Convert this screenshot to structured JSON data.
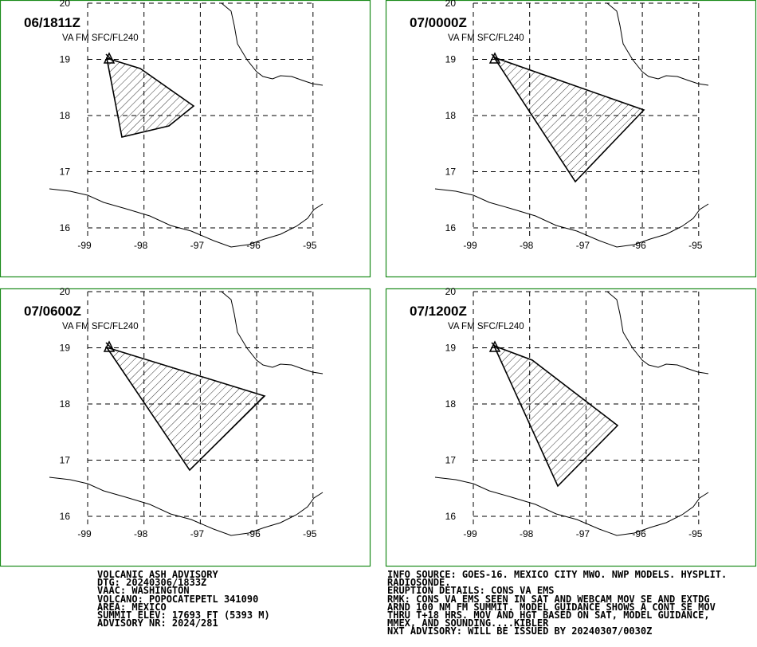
{
  "panels": [
    {
      "time": "06/1811Z",
      "level": "VA FM SFC/FL240"
    },
    {
      "time": "07/0000Z",
      "level": "VA FM SFC/FL240"
    },
    {
      "time": "07/0600Z",
      "level": "VA FM SFC/FL240"
    },
    {
      "time": "07/1200Z",
      "level": "VA FM SFC/FL240"
    }
  ],
  "lat_ticks": [
    20,
    19,
    18,
    17,
    16
  ],
  "lon_ticks": [
    -99,
    -98,
    -97,
    -96,
    -95
  ],
  "advisory_left": [
    "VOLCANIC ASH ADVISORY",
    "DTG: 20240306/1833Z",
    "VAAC: WASHINGTON",
    "VOLCANO: POPOCATEPETL 341090",
    "AREA: MEXICO",
    "SUMMIT ELEV: 17693 FT (5393 M)",
    "ADVISORY NR: 2024/281"
  ],
  "advisory_right": [
    "INFO SOURCE: GOES-16. MEXICO CITY MWO. NWP MODELS. HYSPLIT.",
    "RADIOSONDE.",
    "ERUPTION DETAILS: CONS VA EMS",
    "RMK: CONS VA EMS SEEN IN SAT AND WEBCAM MOV SE AND EXTDG",
    "ARND 100 NM FM SUMMIT. MODEL GUIDANCE SHOWS A CONT SE MOV",
    "THRU T+18 HRS. MOV AND HGT BASED ON SAT, MODEL GUIDANCE,",
    "MMEX, AND SOUNDING....KIBLER",
    "NXT ADVISORY: WILL BE ISSUED BY 20240307/0030Z"
  ]
}
